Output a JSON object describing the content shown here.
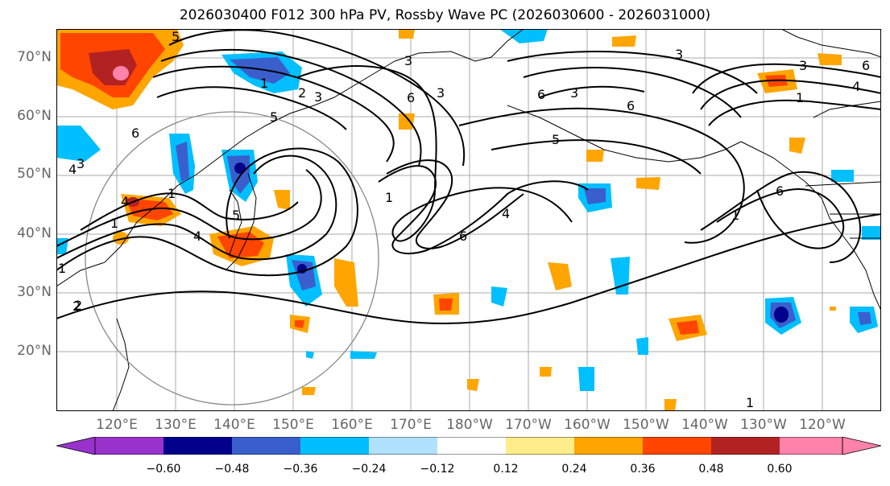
{
  "title": "2026030400 F012 300 hPa PV, Rossby Wave PC (2026030600 - 2026031000)",
  "lat_labels": [
    "70°N",
    "60°N",
    "50°N",
    "40°N",
    "30°N",
    "20°N"
  ],
  "lon_labels": [
    "120°E",
    "130°E",
    "140°E",
    "150°E",
    "160°E",
    "170°E",
    "180°W",
    "170°W",
    "160°W",
    "150°W",
    "140°W",
    "130°W",
    "120°W"
  ],
  "contour_labels": [
    "5",
    "3",
    "3",
    "6",
    "1",
    "2",
    "3",
    "4",
    "5",
    "6",
    "1",
    "2",
    "3",
    "4",
    "5",
    "6",
    "3",
    "6",
    "3",
    "5",
    "6",
    "1",
    "4",
    "3",
    "6",
    "4",
    "1",
    "6",
    "1",
    "2",
    "1",
    "4",
    "1",
    "1"
  ],
  "colorbar": {
    "ticks": [
      "−0.60",
      "−0.48",
      "−0.36",
      "−0.24",
      "−0.12",
      "0.12",
      "0.24",
      "0.36",
      "0.48",
      "0.60"
    ],
    "colors": [
      "#9932cc",
      "#00008b",
      "#3a5fcd",
      "#00bfff",
      "#b0e2ff",
      "#ffffff",
      "#ffec8b",
      "#ffa500",
      "#ff4500",
      "#b22222",
      "#ff82ab"
    ],
    "extend": "both"
  },
  "styles": {
    "grid_color": "#aaaaaa",
    "coast_color": "#000000",
    "contour_color": "#000000",
    "circle_color": "#888888",
    "label_color": "#666666"
  }
}
